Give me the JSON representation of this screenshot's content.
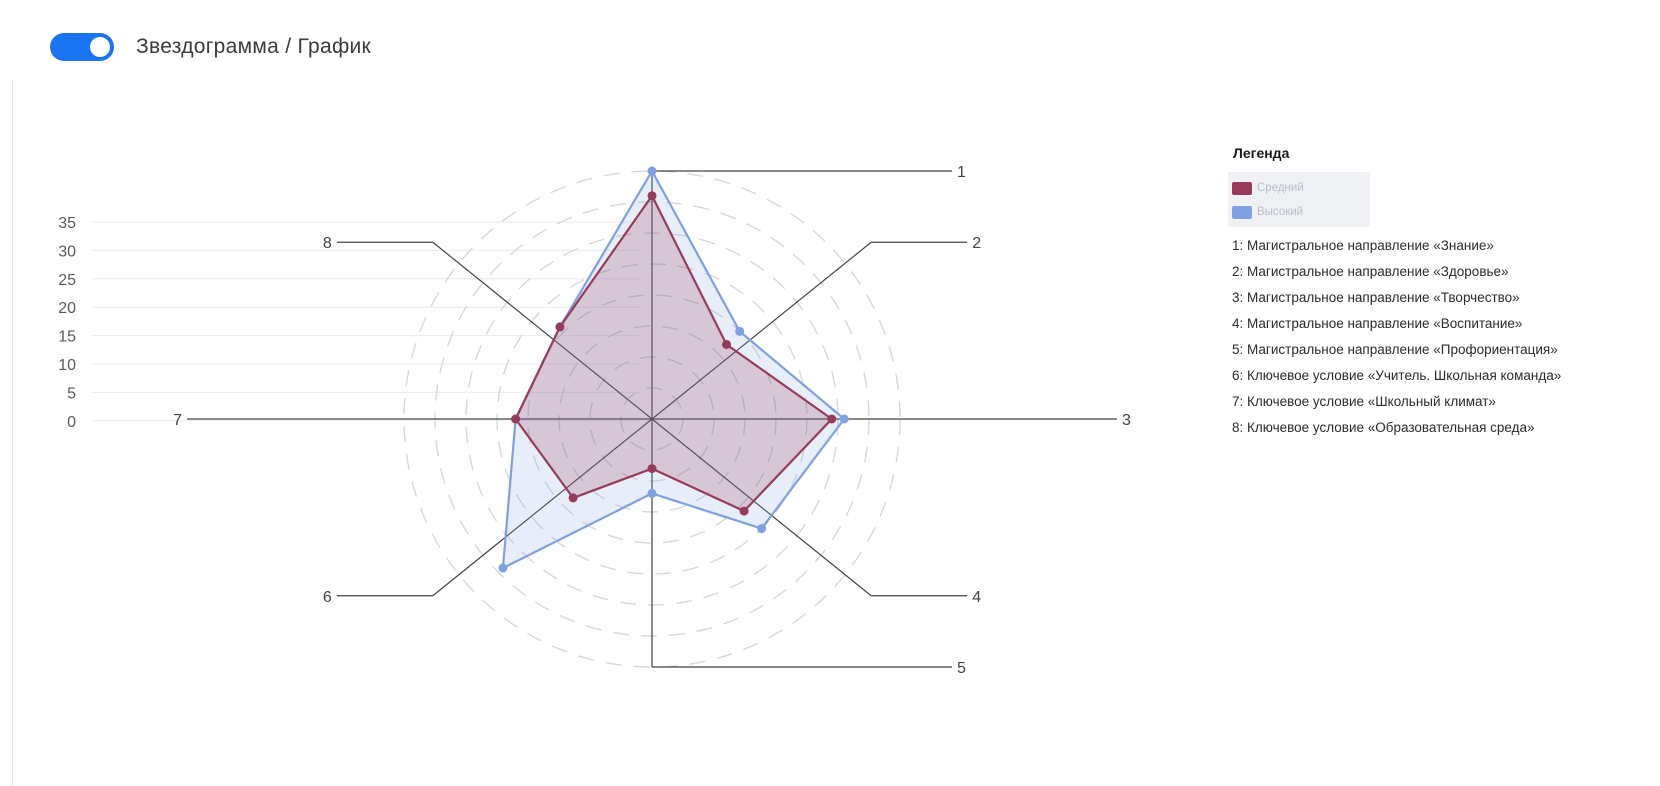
{
  "header": {
    "toggle_label": "Звездограмма / График",
    "toggle_on": true,
    "accent": "#1a73f0"
  },
  "legend": {
    "title": "Легенда",
    "series": [
      {
        "name": "Средний",
        "color": "#963c5a"
      },
      {
        "name": "Высокий",
        "color": "#7fa1e0"
      }
    ],
    "items": [
      "1: Магистральное направление «Знание»",
      "2: Магистральное направление «Здоровье»",
      "3: Магистральное направление «Творчество»",
      "4: Магистральное направление «Воспитание»",
      "5: Магистральное направление «Профориентация»",
      "6: Ключевое условие «Учитель. Школьная команда»",
      "7: Ключевое условие «Школьный климат»",
      "8: Ключевое условие «Образовательная среда»"
    ]
  },
  "chart_data": {
    "type": "radar",
    "categories": [
      "1",
      "2",
      "3",
      "4",
      "5",
      "6",
      "7",
      "8"
    ],
    "axis_ticks": [
      "35",
      "30",
      "25",
      "20",
      "15",
      "10",
      "5",
      "0"
    ],
    "rlim": [
      0,
      40
    ],
    "grid": true,
    "legend_position": "right",
    "series": [
      {
        "name": "Средний",
        "color": "#963c5a",
        "values": [
          36,
          17,
          29,
          21,
          8,
          18,
          22,
          21
        ]
      },
      {
        "name": "Высокий",
        "color": "#7fa1e0",
        "values": [
          40,
          20,
          31,
          25,
          12,
          34,
          22,
          21
        ]
      }
    ]
  }
}
